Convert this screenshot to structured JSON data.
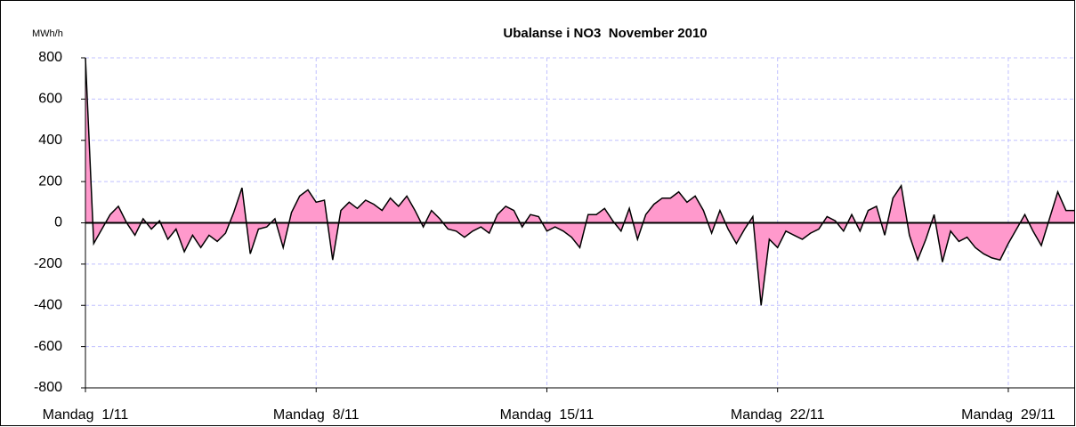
{
  "chart_data": {
    "type": "area",
    "title": "Ubalanse i NO3  November 2010",
    "y_label": "MWh/h",
    "x": [
      0,
      6,
      12,
      18,
      24,
      30,
      36,
      42,
      48,
      54,
      60,
      66,
      72,
      78,
      84,
      90,
      96,
      102,
      108,
      114,
      120,
      126,
      132,
      138,
      144,
      150,
      156,
      162,
      168,
      174,
      180,
      186,
      192,
      198,
      204,
      210,
      216,
      222,
      228,
      234,
      240,
      246,
      252,
      258,
      264,
      270,
      276,
      282,
      288,
      294,
      300,
      306,
      312,
      318,
      324,
      330,
      336,
      342,
      348,
      354,
      360,
      366,
      372,
      378,
      384,
      390,
      396,
      402,
      408,
      414,
      420,
      426,
      432,
      438,
      444,
      450,
      456,
      462,
      468,
      474,
      480,
      486,
      492,
      498,
      504,
      510,
      516,
      522,
      528,
      534,
      540,
      546,
      552,
      558,
      564,
      570,
      576,
      582,
      588,
      594,
      600,
      606,
      612,
      618,
      624,
      630,
      636,
      642,
      648,
      654,
      660,
      666,
      672,
      678,
      684,
      690,
      696,
      702,
      708,
      714,
      720
    ],
    "values": [
      800,
      -100,
      -30,
      40,
      80,
      0,
      -60,
      20,
      -30,
      10,
      -80,
      -30,
      -140,
      -60,
      -120,
      -60,
      -90,
      -50,
      50,
      170,
      -150,
      -30,
      -20,
      20,
      -120,
      50,
      130,
      160,
      100,
      110,
      -180,
      60,
      100,
      70,
      110,
      90,
      60,
      120,
      80,
      130,
      60,
      -20,
      60,
      20,
      -30,
      -40,
      -70,
      -40,
      -20,
      -50,
      40,
      80,
      60,
      -20,
      40,
      30,
      -40,
      -20,
      -40,
      -70,
      -120,
      40,
      40,
      70,
      10,
      -40,
      70,
      -80,
      40,
      90,
      120,
      120,
      150,
      100,
      130,
      60,
      -50,
      60,
      -30,
      -100,
      -30,
      30,
      -400,
      -80,
      -120,
      -40,
      -60,
      -80,
      -50,
      -30,
      30,
      10,
      -40,
      40,
      -40,
      60,
      80,
      -60,
      120,
      180,
      -60,
      -180,
      -80,
      40,
      -190,
      -40,
      -90,
      -70,
      -120,
      -150,
      -170,
      -180,
      -100,
      -30,
      40,
      -40,
      -110,
      20,
      150,
      60,
      60
    ],
    "color": "#000000",
    "fill_color": "#ff99cc",
    "xlim": [
      0,
      720
    ],
    "xticks": [
      {
        "value": 0,
        "label": "Mandag  1/11"
      },
      {
        "value": 168,
        "label": "Mandag  8/11"
      },
      {
        "value": 336,
        "label": "Mandag  15/11"
      },
      {
        "value": 504,
        "label": "Mandag  22/11"
      },
      {
        "value": 672,
        "label": "Mandag  29/11"
      }
    ],
    "ylim": [
      -800,
      800
    ],
    "yticks": [
      -800,
      -600,
      -400,
      -200,
      0,
      200,
      400,
      600,
      800
    ],
    "grid": true
  }
}
